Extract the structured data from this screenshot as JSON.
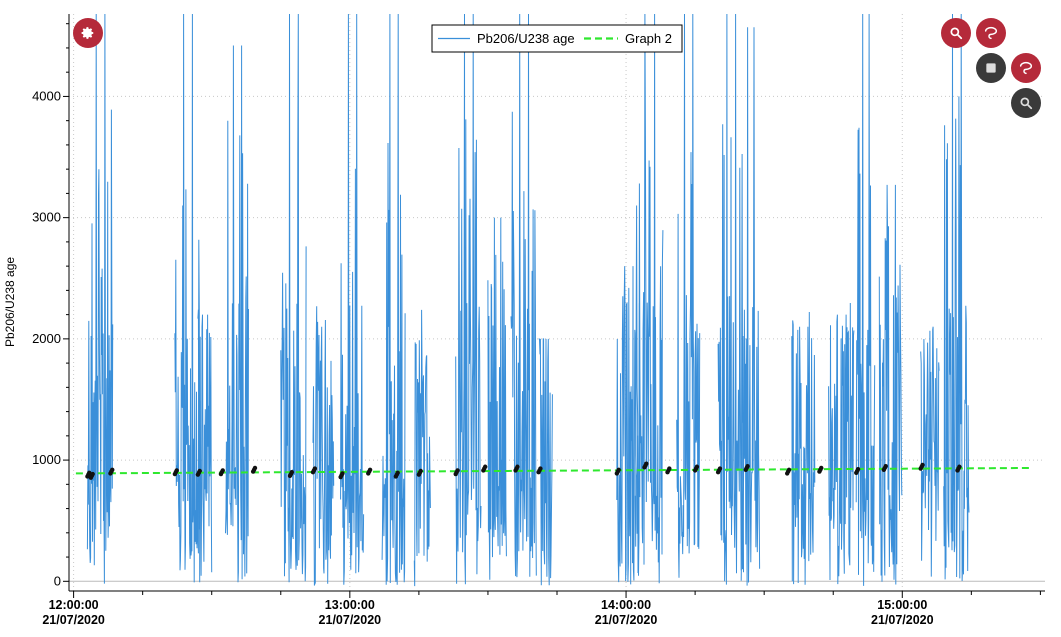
{
  "chart_data": {
    "type": "line",
    "title": "",
    "xlabel": "",
    "ylabel": "Pb206/U238 age",
    "ylim": [
      -80,
      4680
    ],
    "yticks": [
      0,
      1000,
      2000,
      3000,
      4000
    ],
    "x_range": [
      "21/07/2020 11:59:00",
      "21/07/2020 15:31:00"
    ],
    "x_ticks": [
      {
        "time": "12:00:00",
        "date": "21/07/2020"
      },
      {
        "time": "13:00:00",
        "date": "21/07/2020"
      },
      {
        "time": "14:00:00",
        "date": "21/07/2020"
      },
      {
        "time": "15:00:00",
        "date": "21/07/2020"
      }
    ],
    "grid": true,
    "legend": {
      "placement": "top-center"
    },
    "series": [
      {
        "name": "Pb206/U238 age",
        "color": "#3a8fd9",
        "style": "solid",
        "note_style": "spiky signal bursts in analysis groups",
        "bursts": [
          {
            "start": "12:03:00",
            "end": "12:08:30",
            "peak": 4700
          },
          {
            "start": "12:22:00",
            "end": "12:27:30",
            "peak": 4700
          },
          {
            "start": "12:27:00",
            "end": "12:30:00",
            "peak": 2200
          },
          {
            "start": "12:33:00",
            "end": "12:38:00",
            "peak": 4420
          },
          {
            "start": "12:45:00",
            "end": "12:50:30",
            "peak": 4700
          },
          {
            "start": "12:52:00",
            "end": "12:56:30",
            "peak": 1600
          },
          {
            "start": "12:58:00",
            "end": "13:03:00",
            "peak": 4700
          },
          {
            "start": "13:07:00",
            "end": "13:12:00",
            "peak": 4700
          },
          {
            "start": "13:14:00",
            "end": "13:17:30",
            "peak": 1400
          },
          {
            "start": "13:23:00",
            "end": "13:28:30",
            "peak": 4700
          },
          {
            "start": "13:30:00",
            "end": "13:34:00",
            "peak": 3000
          },
          {
            "start": "13:35:00",
            "end": "13:40:30",
            "peak": 4700
          },
          {
            "start": "13:41:00",
            "end": "13:44:00",
            "peak": 2000
          },
          {
            "start": "13:58:00",
            "end": "14:03:00",
            "peak": 2600
          },
          {
            "start": "14:02:00",
            "end": "14:08:00",
            "peak": 4700
          },
          {
            "start": "14:11:00",
            "end": "14:16:00",
            "peak": 4700
          },
          {
            "start": "14:20:00",
            "end": "14:25:30",
            "peak": 4700
          },
          {
            "start": "14:25:00",
            "end": "14:29:00",
            "peak": 4570
          },
          {
            "start": "14:36:00",
            "end": "14:41:00",
            "peak": 2100
          },
          {
            "start": "14:44:00",
            "end": "14:49:30",
            "peak": 2200
          },
          {
            "start": "14:50:00",
            "end": "14:54:00",
            "peak": 4700
          },
          {
            "start": "14:55:00",
            "end": "15:00:00",
            "peak": 3270
          },
          {
            "start": "15:04:00",
            "end": "15:08:00",
            "peak": 1500
          },
          {
            "start": "15:09:00",
            "end": "15:14:30",
            "peak": 4700
          }
        ]
      },
      {
        "name": "Graph 2",
        "color": "#2ee82e",
        "style": "dashed",
        "x": [
          "12:00:30",
          "15:28:00"
        ],
        "y": [
          890,
          935
        ]
      }
    ],
    "markers": {
      "color": "#111111",
      "style": "filled dots",
      "points": [
        {
          "t": "12:03:00",
          "y": 880
        },
        {
          "t": "12:03:45",
          "y": 870
        },
        {
          "t": "12:08:00",
          "y": 905
        },
        {
          "t": "12:22:00",
          "y": 900
        },
        {
          "t": "12:27:00",
          "y": 895
        },
        {
          "t": "12:32:00",
          "y": 900
        },
        {
          "t": "12:39:00",
          "y": 920
        },
        {
          "t": "12:47:00",
          "y": 885
        },
        {
          "t": "12:52:00",
          "y": 915
        },
        {
          "t": "12:58:00",
          "y": 875
        },
        {
          "t": "13:04:00",
          "y": 905
        },
        {
          "t": "13:10:00",
          "y": 880
        },
        {
          "t": "13:15:00",
          "y": 895
        },
        {
          "t": "13:23:00",
          "y": 900
        },
        {
          "t": "13:29:00",
          "y": 930
        },
        {
          "t": "13:36:00",
          "y": 930
        },
        {
          "t": "13:41:00",
          "y": 915
        },
        {
          "t": "13:58:00",
          "y": 905
        },
        {
          "t": "14:04:00",
          "y": 955
        },
        {
          "t": "14:09:00",
          "y": 915
        },
        {
          "t": "14:15:00",
          "y": 930
        },
        {
          "t": "14:20:00",
          "y": 915
        },
        {
          "t": "14:26:00",
          "y": 935
        },
        {
          "t": "14:35:00",
          "y": 905
        },
        {
          "t": "14:42:00",
          "y": 920
        },
        {
          "t": "14:50:00",
          "y": 910
        },
        {
          "t": "14:56:00",
          "y": 935
        },
        {
          "t": "15:04:00",
          "y": 945
        },
        {
          "t": "15:12:00",
          "y": 930
        }
      ]
    }
  },
  "controls": {
    "settings_icon": "gear-icon",
    "zoom_icon": "magnifier-icon",
    "select_icon": "lasso-icon",
    "stop_icon": "stop-icon",
    "colors": {
      "red": "#b52a3a",
      "dark": "#3a3a3a"
    }
  }
}
